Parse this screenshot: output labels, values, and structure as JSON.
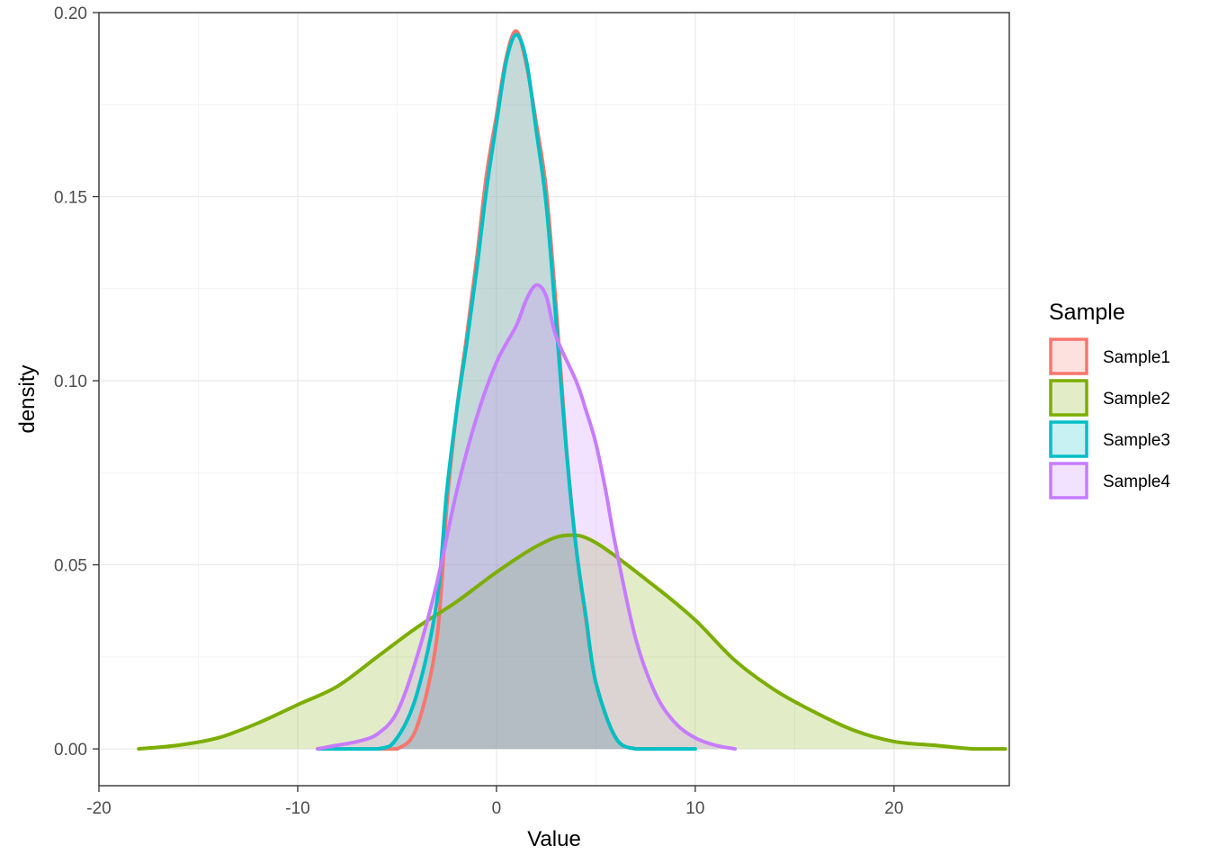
{
  "chart_data": {
    "type": "area",
    "subtype": "density",
    "xlabel": "Value",
    "ylabel": "density",
    "xlim": [
      -20,
      25.8
    ],
    "ylim": [
      -0.01,
      0.2
    ],
    "x_ticks": [
      -20,
      -10,
      0,
      10,
      20
    ],
    "x_tick_labels": [
      "-20",
      "-10",
      "0",
      "10",
      "20"
    ],
    "y_ticks": [
      0.0,
      0.05,
      0.1,
      0.15,
      0.2
    ],
    "y_tick_labels": [
      "0.00",
      "0.05",
      "0.10",
      "0.15",
      "0.20"
    ],
    "grid": true,
    "legend": {
      "title": "Sample",
      "position": "right"
    },
    "series": [
      {
        "name": "Sample1",
        "color": "#F8766D",
        "x": [
          -6,
          -5,
          -4,
          -3,
          -2.5,
          -2,
          -1.5,
          -1,
          -0.5,
          0,
          0.5,
          1,
          1.5,
          2,
          2.5,
          3,
          3.5,
          4,
          4.5,
          5,
          6,
          7,
          8
        ],
        "y": [
          0.0,
          0.0,
          0.006,
          0.03,
          0.066,
          0.092,
          0.112,
          0.133,
          0.156,
          0.172,
          0.188,
          0.195,
          0.186,
          0.17,
          0.152,
          0.12,
          0.083,
          0.055,
          0.035,
          0.018,
          0.003,
          0.0,
          0.0
        ]
      },
      {
        "name": "Sample2",
        "color": "#7CAE00",
        "x": [
          -18,
          -16,
          -14,
          -12,
          -10,
          -8,
          -6,
          -4,
          -2,
          0,
          2,
          3.5,
          5,
          8,
          10,
          12,
          14,
          16,
          18,
          20,
          22,
          24,
          25.6
        ],
        "y": [
          0.0,
          0.001,
          0.003,
          0.007,
          0.012,
          0.017,
          0.025,
          0.033,
          0.04,
          0.048,
          0.055,
          0.058,
          0.056,
          0.044,
          0.035,
          0.024,
          0.016,
          0.01,
          0.005,
          0.002,
          0.001,
          0.0,
          0.0
        ]
      },
      {
        "name": "Sample3",
        "color": "#00BFC4",
        "x": [
          -9,
          -6,
          -5,
          -4,
          -3,
          -2.5,
          -2,
          -1.5,
          -1,
          -0.5,
          0,
          0.5,
          1,
          1.5,
          2,
          2.5,
          3,
          3.5,
          4,
          4.5,
          5,
          6,
          7,
          8,
          10
        ],
        "y": [
          0.0,
          0.0,
          0.003,
          0.015,
          0.04,
          0.07,
          0.092,
          0.11,
          0.13,
          0.152,
          0.17,
          0.187,
          0.194,
          0.187,
          0.168,
          0.148,
          0.116,
          0.082,
          0.055,
          0.036,
          0.018,
          0.003,
          0.0,
          0.0,
          0.0
        ]
      },
      {
        "name": "Sample4",
        "color": "#C77CFF",
        "x": [
          -9,
          -8,
          -7,
          -6,
          -5,
          -4,
          -3,
          -2,
          -1,
          0,
          1,
          1.5,
          2,
          2.5,
          3,
          4,
          4.5,
          5,
          5.5,
          6,
          7,
          8,
          9,
          10,
          11,
          12
        ],
        "y": [
          0.0,
          0.001,
          0.002,
          0.004,
          0.01,
          0.025,
          0.045,
          0.07,
          0.09,
          0.105,
          0.115,
          0.122,
          0.126,
          0.123,
          0.112,
          0.1,
          0.092,
          0.083,
          0.07,
          0.055,
          0.03,
          0.015,
          0.007,
          0.003,
          0.001,
          0.0
        ]
      }
    ]
  }
}
